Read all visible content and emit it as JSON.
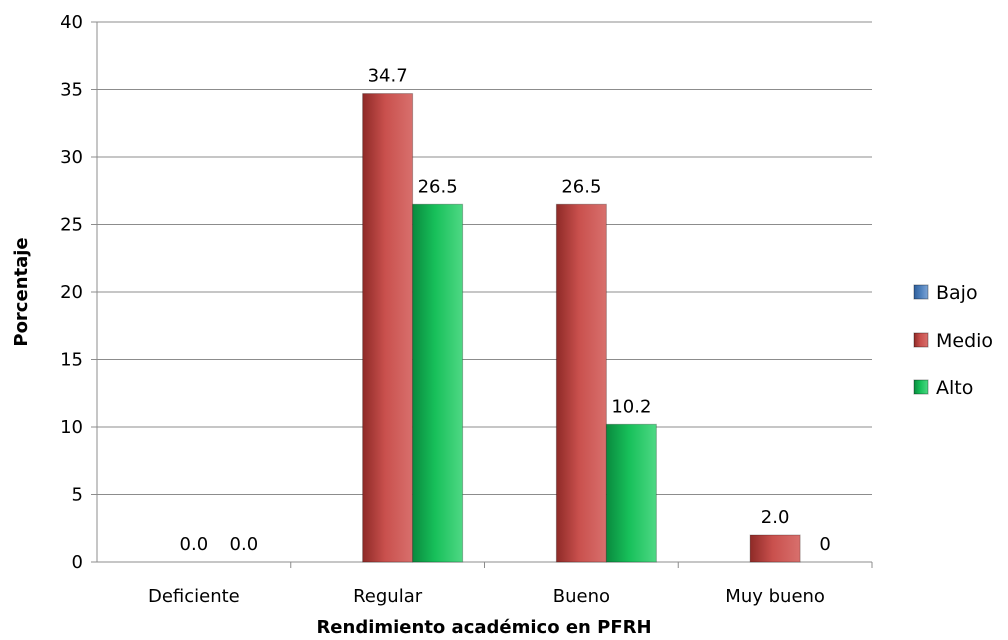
{
  "chart_data": {
    "type": "bar",
    "title": "",
    "xlabel": "Rendimiento académico en PFRH",
    "ylabel": "Porcentaje",
    "ylim": [
      0,
      40
    ],
    "yticks": [
      0,
      5,
      10,
      15,
      20,
      25,
      30,
      35,
      40
    ],
    "grid": true,
    "legend_position": "right",
    "categories": [
      "Deficiente",
      "Regular",
      "Bueno",
      "Muy bueno"
    ],
    "series": [
      {
        "name": "Bajo",
        "color": "#4f81bd",
        "values": [
          0,
          0,
          0,
          0
        ],
        "labels": [
          "",
          "",
          "",
          ""
        ]
      },
      {
        "name": "Medio",
        "color": "#c0504d",
        "values": [
          0,
          34.7,
          26.5,
          2.0
        ],
        "labels": [
          "0.0",
          "34.7",
          "26.5",
          "2.0"
        ]
      },
      {
        "name": "Alto",
        "color": "#00b050",
        "values": [
          0,
          26.5,
          10.2,
          0
        ],
        "labels": [
          "0.0",
          "26.5",
          "10.2",
          "0"
        ]
      }
    ]
  }
}
